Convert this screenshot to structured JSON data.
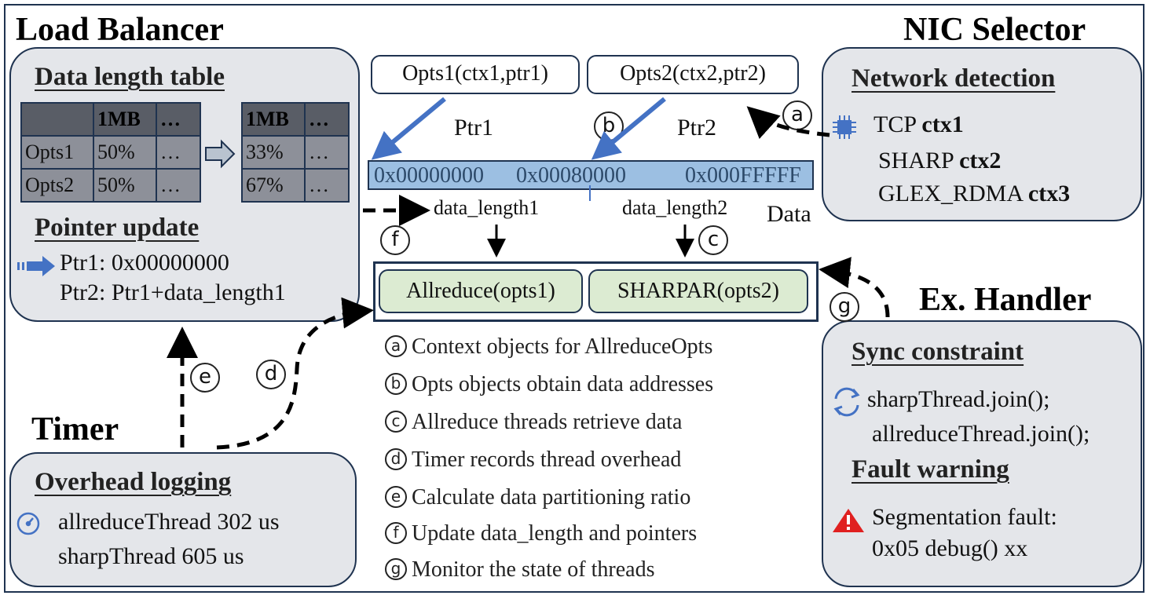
{
  "headings": {
    "load_balancer": "Load Balancer",
    "nic_selector": "NIC Selector",
    "ex_handler": "Ex. Handler",
    "timer": "Timer"
  },
  "load_balancer": {
    "table_title": "Data length table",
    "table_before": {
      "header": [
        "",
        "1MB",
        "…"
      ],
      "rows": [
        [
          "Opts1",
          "50%",
          "…"
        ],
        [
          "Opts2",
          "50%",
          "…"
        ]
      ]
    },
    "table_after": {
      "header": [
        "1MB",
        "…"
      ],
      "rows": [
        [
          "33%",
          "…"
        ],
        [
          "67%",
          "…"
        ]
      ]
    },
    "pointer_title": "Pointer update",
    "ptr1": "Ptr1: 0x00000000",
    "ptr2": "Ptr2: Ptr1+data_length1"
  },
  "center": {
    "opts1": "Opts1(ctx1,ptr1)",
    "opts2": "Opts2(ctx2,ptr2)",
    "ptr1_label": "Ptr1",
    "ptr2_label": "Ptr2",
    "addr_start": "0x00000000",
    "addr_mid": "0x00080000",
    "addr_end": "0x000FFFFF",
    "data_label": "Data",
    "data_length1": "data_length1",
    "data_length2": "data_length2",
    "allreduce": "Allreduce(opts1)",
    "sharpar": "SHARPAR(opts2)"
  },
  "markers": {
    "a": "a",
    "b": "b",
    "c": "c",
    "d": "d",
    "e": "e",
    "f": "f",
    "g": "g"
  },
  "nic_selector": {
    "title": "Network detection",
    "rows": [
      {
        "name": "TCP",
        "ctx": "ctx1"
      },
      {
        "name": "SHARP",
        "ctx": "ctx2"
      },
      {
        "name": "GLEX_RDMA",
        "ctx": "ctx3"
      }
    ]
  },
  "ex_handler": {
    "sync_title": "Sync constraint",
    "sync_line1": "sharpThread.join();",
    "sync_line2": "allreduceThread.join();",
    "fault_title": "Fault warning",
    "fault_line1": "Segmentation fault:",
    "fault_line2": "0x05 debug() xx"
  },
  "timer": {
    "title": "Overhead logging",
    "line1": "allreduceThread 302 us",
    "line2": "sharpThread 605 us"
  },
  "legend": [
    {
      "key": "a",
      "text": "Context objects for AllreduceOpts"
    },
    {
      "key": "b",
      "text": "Opts objects obtain data addresses"
    },
    {
      "key": "c",
      "text": "Allreduce threads retrieve data"
    },
    {
      "key": "d",
      "text": "Timer records thread overhead"
    },
    {
      "key": "e",
      "text": "Calculate data partitioning ratio"
    },
    {
      "key": "f",
      "text": "Update data_length and pointers"
    },
    {
      "key": "g",
      "text": "Monitor the state of threads"
    }
  ],
  "colors": {
    "panel": "#e4e6ea",
    "border": "#1f3350",
    "arrow_blue": "#4472c4",
    "bar": "#9cbfe2",
    "green": "#dcebd2",
    "warning": "#e02020"
  }
}
